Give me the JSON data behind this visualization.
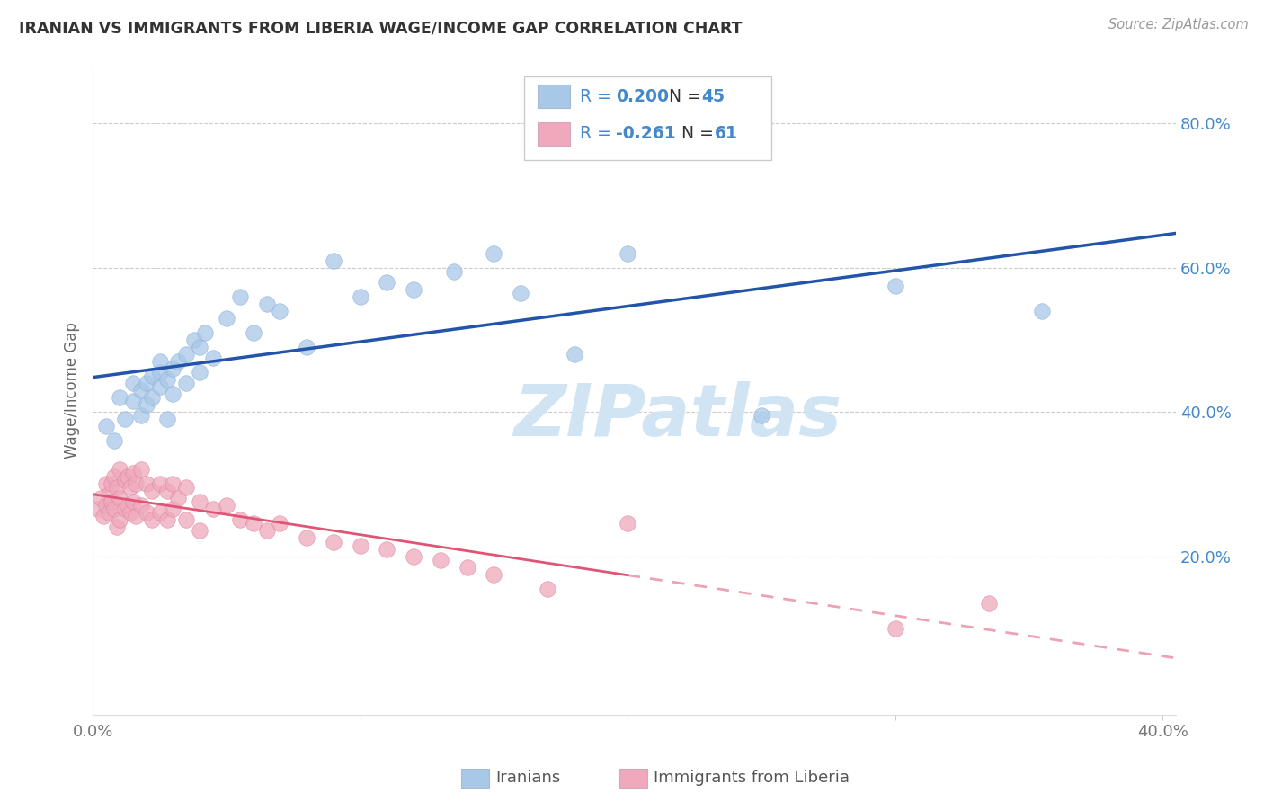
{
  "title": "IRANIAN VS IMMIGRANTS FROM LIBERIA WAGE/INCOME GAP CORRELATION CHART",
  "source": "Source: ZipAtlas.com",
  "ylabel": "Wage/Income Gap",
  "color_iranian": "#a8c8e8",
  "color_liberia": "#f0a8bc",
  "line_color_iranian": "#2255aa",
  "line_color_liberia": "#e05575",
  "watermark": "ZIPatlas",
  "watermark_color": "#d0e4f4",
  "background_color": "#ffffff",
  "iranians_x": [
    0.005,
    0.008,
    0.01,
    0.012,
    0.015,
    0.015,
    0.018,
    0.018,
    0.02,
    0.02,
    0.022,
    0.022,
    0.025,
    0.025,
    0.025,
    0.028,
    0.028,
    0.03,
    0.03,
    0.032,
    0.035,
    0.035,
    0.038,
    0.04,
    0.04,
    0.042,
    0.045,
    0.05,
    0.055,
    0.06,
    0.065,
    0.07,
    0.08,
    0.09,
    0.1,
    0.11,
    0.12,
    0.135,
    0.15,
    0.16,
    0.18,
    0.2,
    0.25,
    0.3,
    0.355
  ],
  "iranians_y": [
    0.38,
    0.36,
    0.42,
    0.39,
    0.44,
    0.415,
    0.43,
    0.395,
    0.44,
    0.41,
    0.45,
    0.42,
    0.455,
    0.435,
    0.47,
    0.445,
    0.39,
    0.46,
    0.425,
    0.47,
    0.48,
    0.44,
    0.5,
    0.49,
    0.455,
    0.51,
    0.475,
    0.53,
    0.56,
    0.51,
    0.55,
    0.54,
    0.49,
    0.61,
    0.56,
    0.58,
    0.57,
    0.595,
    0.62,
    0.565,
    0.48,
    0.62,
    0.395,
    0.575,
    0.54
  ],
  "liberia_x": [
    0.002,
    0.003,
    0.004,
    0.005,
    0.005,
    0.006,
    0.006,
    0.007,
    0.007,
    0.008,
    0.008,
    0.009,
    0.009,
    0.01,
    0.01,
    0.01,
    0.012,
    0.012,
    0.013,
    0.013,
    0.014,
    0.014,
    0.015,
    0.015,
    0.016,
    0.016,
    0.018,
    0.018,
    0.02,
    0.02,
    0.022,
    0.022,
    0.025,
    0.025,
    0.028,
    0.028,
    0.03,
    0.03,
    0.032,
    0.035,
    0.035,
    0.04,
    0.04,
    0.045,
    0.05,
    0.055,
    0.06,
    0.065,
    0.07,
    0.08,
    0.09,
    0.1,
    0.11,
    0.12,
    0.13,
    0.14,
    0.15,
    0.17,
    0.2,
    0.3,
    0.335
  ],
  "liberia_y": [
    0.265,
    0.28,
    0.255,
    0.3,
    0.27,
    0.285,
    0.26,
    0.3,
    0.275,
    0.31,
    0.265,
    0.295,
    0.24,
    0.32,
    0.28,
    0.25,
    0.305,
    0.265,
    0.31,
    0.27,
    0.295,
    0.26,
    0.315,
    0.275,
    0.3,
    0.255,
    0.32,
    0.27,
    0.3,
    0.26,
    0.29,
    0.25,
    0.3,
    0.26,
    0.29,
    0.25,
    0.3,
    0.265,
    0.28,
    0.295,
    0.25,
    0.275,
    0.235,
    0.265,
    0.27,
    0.25,
    0.245,
    0.235,
    0.245,
    0.225,
    0.22,
    0.215,
    0.21,
    0.2,
    0.195,
    0.185,
    0.175,
    0.155,
    0.245,
    0.1,
    0.135
  ],
  "xlim": [
    0.0,
    0.405
  ],
  "ylim": [
    -0.02,
    0.88
  ],
  "yticks": [
    0.2,
    0.4,
    0.6,
    0.8
  ],
  "ytick_labels": [
    "20.0%",
    "40.0%",
    "60.0%",
    "80.0%"
  ],
  "xticks": [
    0.0,
    0.1,
    0.2,
    0.3,
    0.4
  ],
  "xtick_labels": [
    "0.0%",
    "",
    "",
    "",
    "40.0%"
  ]
}
